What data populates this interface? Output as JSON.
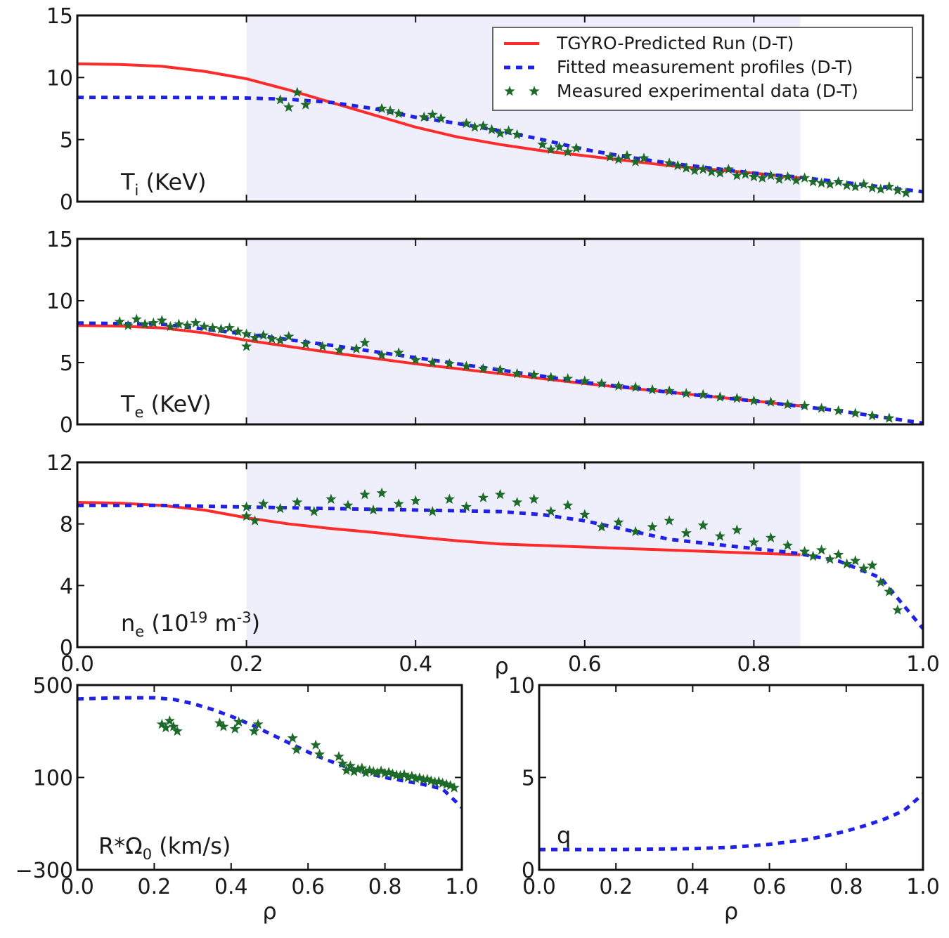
{
  "colors": {
    "predicted": "#ff2b2b",
    "fitted": "#2020e6",
    "measured": "#1e6a2a",
    "shade": "#eeeffb",
    "axis": "#111111"
  },
  "legend": {
    "predicted": "TGYRO-Predicted Run (D-T)",
    "fitted": "Fitted measurement profiles (D-T)",
    "measured": "Measured experimental data (D-T)"
  },
  "chart_data": [
    {
      "id": "ti",
      "type": "line",
      "label": "T",
      "label_sub": "i",
      "label_rest": " (KeV)",
      "xlim": [
        0,
        1
      ],
      "ylim": [
        0,
        15
      ],
      "yticks": [
        "0",
        "5",
        "10",
        "15"
      ],
      "shaded_x": [
        0.2,
        0.855
      ],
      "series": [
        {
          "key": "predicted",
          "style": "line",
          "x": [
            0,
            0.05,
            0.1,
            0.15,
            0.2,
            0.25,
            0.3,
            0.35,
            0.4,
            0.45,
            0.5,
            0.55,
            0.6,
            0.65,
            0.7,
            0.75,
            0.8,
            0.855
          ],
          "y": [
            11.1,
            11.05,
            10.9,
            10.5,
            9.9,
            9.0,
            8.0,
            7.0,
            6.0,
            5.2,
            4.6,
            4.1,
            3.7,
            3.3,
            2.9,
            2.6,
            2.3,
            1.9
          ]
        },
        {
          "key": "fitted",
          "style": "dashed",
          "x": [
            0,
            0.1,
            0.2,
            0.25,
            0.3,
            0.35,
            0.4,
            0.45,
            0.5,
            0.55,
            0.6,
            0.65,
            0.7,
            0.75,
            0.8,
            0.85,
            0.9,
            0.95,
            1.0
          ],
          "y": [
            8.4,
            8.4,
            8.35,
            8.25,
            8.0,
            7.5,
            6.8,
            6.3,
            5.7,
            5.0,
            4.2,
            3.6,
            3.1,
            2.7,
            2.3,
            2.0,
            1.6,
            1.2,
            0.8
          ]
        },
        {
          "key": "measured",
          "style": "stars",
          "x": [
            0.24,
            0.25,
            0.26,
            0.27,
            0.36,
            0.37,
            0.38,
            0.41,
            0.42,
            0.43,
            0.46,
            0.47,
            0.48,
            0.49,
            0.5,
            0.51,
            0.52,
            0.55,
            0.56,
            0.57,
            0.58,
            0.59,
            0.63,
            0.64,
            0.65,
            0.66,
            0.67,
            0.7,
            0.71,
            0.72,
            0.73,
            0.74,
            0.75,
            0.76,
            0.77,
            0.78,
            0.79,
            0.8,
            0.81,
            0.82,
            0.83,
            0.84,
            0.85,
            0.86,
            0.87,
            0.88,
            0.89,
            0.9,
            0.91,
            0.92,
            0.93,
            0.94,
            0.95,
            0.96,
            0.97,
            0.98
          ],
          "y": [
            8.2,
            7.6,
            8.8,
            7.8,
            7.5,
            7.3,
            7.1,
            6.8,
            7.0,
            6.7,
            6.3,
            6.0,
            6.1,
            5.8,
            5.5,
            5.7,
            5.4,
            4.6,
            4.2,
            4.4,
            4.0,
            4.3,
            3.6,
            3.4,
            3.7,
            3.2,
            3.5,
            3.1,
            2.9,
            2.7,
            2.5,
            2.6,
            2.4,
            2.3,
            2.6,
            2.1,
            2.2,
            2.0,
            1.9,
            2.1,
            1.8,
            2.0,
            1.7,
            1.9,
            1.6,
            1.5,
            1.4,
            1.6,
            1.3,
            1.2,
            1.4,
            1.1,
            1.0,
            1.2,
            0.9,
            0.7
          ]
        }
      ]
    },
    {
      "id": "te",
      "type": "line",
      "label": "T",
      "label_sub": "e",
      "label_rest": " (KeV)",
      "xlim": [
        0,
        1
      ],
      "ylim": [
        0,
        15
      ],
      "yticks": [
        "0",
        "5",
        "10",
        "15"
      ],
      "shaded_x": [
        0.2,
        0.855
      ],
      "series": [
        {
          "key": "predicted",
          "style": "line",
          "x": [
            0,
            0.05,
            0.1,
            0.15,
            0.2,
            0.3,
            0.4,
            0.5,
            0.6,
            0.7,
            0.8,
            0.855
          ],
          "y": [
            8.0,
            7.95,
            7.8,
            7.4,
            6.8,
            5.8,
            4.9,
            4.1,
            3.3,
            2.6,
            1.9,
            1.5
          ]
        },
        {
          "key": "fitted",
          "style": "dashed",
          "x": [
            0,
            0.1,
            0.2,
            0.3,
            0.4,
            0.5,
            0.6,
            0.7,
            0.8,
            0.85,
            0.9,
            0.95,
            1.0
          ],
          "y": [
            8.2,
            8.1,
            7.3,
            6.4,
            5.4,
            4.4,
            3.4,
            2.6,
            1.9,
            1.5,
            1.1,
            0.6,
            0.1
          ]
        },
        {
          "key": "measured",
          "style": "stars",
          "x": [
            0.05,
            0.06,
            0.07,
            0.08,
            0.09,
            0.1,
            0.11,
            0.12,
            0.13,
            0.14,
            0.15,
            0.16,
            0.17,
            0.18,
            0.19,
            0.2,
            0.2,
            0.21,
            0.22,
            0.23,
            0.24,
            0.25,
            0.27,
            0.29,
            0.31,
            0.33,
            0.34,
            0.36,
            0.38,
            0.4,
            0.42,
            0.44,
            0.46,
            0.48,
            0.5,
            0.52,
            0.54,
            0.56,
            0.58,
            0.6,
            0.62,
            0.64,
            0.66,
            0.68,
            0.7,
            0.72,
            0.74,
            0.76,
            0.78,
            0.8,
            0.82,
            0.84,
            0.86,
            0.88,
            0.9,
            0.92,
            0.94,
            0.96
          ],
          "y": [
            8.3,
            8.0,
            8.5,
            8.1,
            8.2,
            8.4,
            7.9,
            8.1,
            8.0,
            8.2,
            7.9,
            7.8,
            7.7,
            7.8,
            7.5,
            7.3,
            6.3,
            7.0,
            7.2,
            6.9,
            6.8,
            7.1,
            6.5,
            6.3,
            6.0,
            6.1,
            6.6,
            5.6,
            5.8,
            5.2,
            5.0,
            4.9,
            4.7,
            4.5,
            4.4,
            4.1,
            4.0,
            3.8,
            3.7,
            3.5,
            3.3,
            3.1,
            3.0,
            2.8,
            2.7,
            2.5,
            2.4,
            2.2,
            2.1,
            1.9,
            1.8,
            1.6,
            1.5,
            1.3,
            1.1,
            0.9,
            0.7,
            0.5
          ]
        }
      ]
    },
    {
      "id": "ne",
      "type": "line",
      "label": "n",
      "label_sub": "e",
      "label_rest": " (10",
      "label_sup": "19",
      "label_rest2": " m",
      "label_sup2": "-3",
      "label_rest3": ")",
      "xlim": [
        0,
        1
      ],
      "ylim": [
        0,
        12
      ],
      "yticks": [
        "0",
        "4",
        "8",
        "12"
      ],
      "xticks": [
        "0.0",
        "0.2",
        "0.4",
        "0.6",
        "0.8",
        "1.0"
      ],
      "xlabel": "ρ",
      "shaded_x": [
        0.2,
        0.855
      ],
      "series": [
        {
          "key": "predicted",
          "style": "line",
          "x": [
            0,
            0.05,
            0.1,
            0.15,
            0.2,
            0.25,
            0.3,
            0.35,
            0.4,
            0.45,
            0.5,
            0.55,
            0.6,
            0.65,
            0.7,
            0.75,
            0.8,
            0.855
          ],
          "y": [
            9.4,
            9.35,
            9.2,
            8.9,
            8.4,
            8.0,
            7.7,
            7.45,
            7.15,
            6.9,
            6.7,
            6.6,
            6.5,
            6.4,
            6.3,
            6.2,
            6.1,
            6.0
          ]
        },
        {
          "key": "fitted",
          "style": "dashed",
          "x": [
            0,
            0.1,
            0.2,
            0.3,
            0.4,
            0.5,
            0.55,
            0.6,
            0.65,
            0.7,
            0.75,
            0.8,
            0.85,
            0.9,
            0.95,
            1.0
          ],
          "y": [
            9.2,
            9.2,
            9.1,
            9.0,
            8.9,
            8.8,
            8.6,
            8.2,
            7.6,
            7.0,
            6.7,
            6.4,
            6.1,
            5.6,
            4.5,
            1.2
          ]
        },
        {
          "key": "measured",
          "style": "stars",
          "x": [
            0.2,
            0.2,
            0.21,
            0.22,
            0.24,
            0.26,
            0.28,
            0.3,
            0.32,
            0.34,
            0.35,
            0.36,
            0.38,
            0.4,
            0.42,
            0.44,
            0.46,
            0.48,
            0.5,
            0.52,
            0.54,
            0.56,
            0.58,
            0.6,
            0.62,
            0.64,
            0.66,
            0.68,
            0.7,
            0.72,
            0.74,
            0.76,
            0.78,
            0.8,
            0.82,
            0.84,
            0.86,
            0.87,
            0.88,
            0.89,
            0.9,
            0.91,
            0.92,
            0.93,
            0.94,
            0.95,
            0.96,
            0.97
          ],
          "y": [
            9.1,
            8.5,
            8.2,
            9.3,
            9.0,
            9.4,
            8.8,
            9.6,
            9.2,
            9.9,
            8.9,
            10.0,
            9.3,
            9.5,
            8.8,
            9.6,
            9.1,
            9.7,
            9.9,
            9.4,
            9.6,
            8.8,
            9.2,
            8.6,
            7.8,
            8.1,
            7.5,
            7.8,
            8.2,
            7.4,
            7.9,
            7.2,
            7.6,
            6.8,
            7.1,
            6.6,
            6.2,
            5.9,
            6.3,
            5.7,
            6.0,
            5.4,
            5.6,
            5.1,
            5.3,
            4.2,
            3.6,
            2.4
          ]
        }
      ]
    },
    {
      "id": "rot",
      "type": "line",
      "label": "R*Ω",
      "label_sub": "0",
      "label_rest": " (km/s)",
      "xlim": [
        0,
        1
      ],
      "ylim": [
        -300,
        500
      ],
      "yticks": [
        "−300",
        "100",
        "500"
      ],
      "xticks": [
        "0.0",
        "0.2",
        "0.4",
        "0.6",
        "0.8",
        "1.0"
      ],
      "xlabel": "ρ",
      "series": [
        {
          "key": "fitted",
          "style": "dashed",
          "x": [
            0,
            0.1,
            0.2,
            0.25,
            0.3,
            0.35,
            0.4,
            0.45,
            0.5,
            0.55,
            0.6,
            0.65,
            0.7,
            0.75,
            0.8,
            0.85,
            0.9,
            0.95,
            1.0
          ],
          "y": [
            440,
            445,
            445,
            438,
            420,
            395,
            365,
            330,
            290,
            250,
            210,
            175,
            145,
            120,
            100,
            85,
            70,
            50,
            -30
          ]
        },
        {
          "key": "measured",
          "style": "stars",
          "x": [
            0.22,
            0.23,
            0.24,
            0.25,
            0.26,
            0.37,
            0.38,
            0.41,
            0.42,
            0.46,
            0.47,
            0.56,
            0.57,
            0.62,
            0.63,
            0.68,
            0.69,
            0.7,
            0.71,
            0.72,
            0.73,
            0.74,
            0.75,
            0.76,
            0.77,
            0.78,
            0.79,
            0.8,
            0.81,
            0.82,
            0.83,
            0.84,
            0.85,
            0.86,
            0.87,
            0.88,
            0.89,
            0.9,
            0.91,
            0.92,
            0.93,
            0.94,
            0.95,
            0.96,
            0.97,
            0.98
          ],
          "y": [
            330,
            315,
            345,
            320,
            300,
            335,
            320,
            310,
            340,
            300,
            330,
            270,
            220,
            240,
            200,
            190,
            160,
            130,
            150,
            125,
            135,
            140,
            120,
            130,
            125,
            120,
            128,
            118,
            122,
            115,
            110,
            108,
            112,
            100,
            105,
            95,
            98,
            90,
            92,
            85,
            80,
            82,
            75,
            70,
            65,
            55
          ]
        }
      ]
    },
    {
      "id": "q",
      "type": "line",
      "label": "q",
      "xlim": [
        0,
        1
      ],
      "ylim": [
        0,
        10
      ],
      "yticks": [
        "0",
        "5",
        "10"
      ],
      "xticks": [
        "0.0",
        "0.2",
        "0.4",
        "0.6",
        "0.8",
        "1.0"
      ],
      "xlabel": "ρ",
      "series": [
        {
          "key": "fitted",
          "style": "dashed",
          "x": [
            0,
            0.1,
            0.2,
            0.3,
            0.4,
            0.5,
            0.6,
            0.7,
            0.75,
            0.8,
            0.85,
            0.9,
            0.95,
            1.0
          ],
          "y": [
            1.1,
            1.1,
            1.1,
            1.12,
            1.15,
            1.22,
            1.38,
            1.65,
            1.85,
            2.1,
            2.4,
            2.75,
            3.2,
            4.1
          ]
        }
      ]
    }
  ]
}
